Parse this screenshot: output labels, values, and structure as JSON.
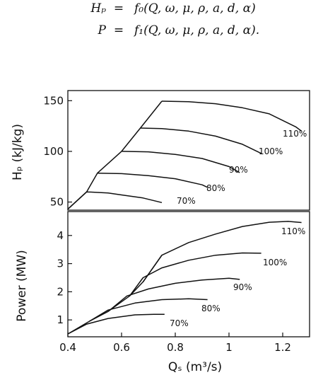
{
  "equations": [
    {
      "lhs": "Hₚ",
      "op": "=",
      "rhs": "f₀(Q, ω, μ, ρ, a, d, α)"
    },
    {
      "lhs": "P",
      "op": "=",
      "rhs": "f₁(Q, ω, μ, ρ, a, d, α)."
    }
  ],
  "chart_data": [
    {
      "type": "line",
      "ylabel": "Hₚ (kJ/kg)",
      "xlim": [
        0.4,
        1.3
      ],
      "ylim": [
        42,
        160
      ],
      "yticks": [
        50,
        100,
        150
      ],
      "series": [
        {
          "name": "70%",
          "x": [
            0.4,
            0.47,
            0.55,
            0.6,
            0.68,
            0.75
          ],
          "y": [
            43,
            60,
            59,
            57,
            54,
            49.5
          ]
        },
        {
          "name": "80%",
          "x": [
            0.51,
            0.6,
            0.7,
            0.8,
            0.9,
            0.92
          ],
          "y": [
            78.5,
            78,
            76,
            73,
            67,
            64.5
          ]
        },
        {
          "name": "90%",
          "x": [
            0.6,
            0.7,
            0.8,
            0.9,
            1.0,
            1.04
          ],
          "y": [
            100,
            99.5,
            97,
            93,
            85,
            79
          ]
        },
        {
          "name": "100%",
          "x": [
            0.67,
            0.75,
            0.85,
            0.95,
            1.05,
            1.12
          ],
          "y": [
            123,
            122.5,
            120,
            115,
            107,
            98
          ]
        },
        {
          "name": "110%",
          "x": [
            0.75,
            0.85,
            0.95,
            1.05,
            1.15,
            1.25,
            1.27
          ],
          "y": [
            149.5,
            149,
            147,
            143,
            137,
            124,
            120
          ]
        },
        {
          "name": "",
          "x": [
            0.4,
            0.47,
            0.51,
            0.6,
            0.67,
            0.75
          ],
          "y": [
            43,
            60,
            78.5,
            100,
            123,
            149.5
          ]
        }
      ]
    },
    {
      "type": "line",
      "xlabel": "Qₛ (m³/s)",
      "ylabel": "Power (MW)",
      "xlim": [
        0.4,
        1.3
      ],
      "ylim": [
        0.4,
        4.85
      ],
      "xticks": [
        0.4,
        0.6,
        0.8,
        1.0,
        1.2
      ],
      "xtick_labels": [
        "0.4",
        "0.6",
        "0.8",
        "1",
        "1.2"
      ],
      "yticks": [
        1,
        2,
        3,
        4
      ],
      "series": [
        {
          "name": "70%",
          "x": [
            0.4,
            0.47,
            0.55,
            0.65,
            0.72,
            0.76
          ],
          "y": [
            0.5,
            0.85,
            1.05,
            1.18,
            1.2,
            1.2
          ]
        },
        {
          "name": "80%",
          "x": [
            0.48,
            0.55,
            0.65,
            0.75,
            0.85,
            0.92
          ],
          "y": [
            0.95,
            1.35,
            1.6,
            1.72,
            1.75,
            1.72
          ]
        },
        {
          "name": "90%",
          "x": [
            0.55,
            0.62,
            0.7,
            0.8,
            0.9,
            1.0,
            1.04
          ],
          "y": [
            1.3,
            1.85,
            2.1,
            2.3,
            2.42,
            2.48,
            2.44
          ]
        },
        {
          "name": "100%",
          "x": [
            0.63,
            0.68,
            0.75,
            0.85,
            0.95,
            1.05,
            1.12
          ],
          "y": [
            1.85,
            2.5,
            2.85,
            3.12,
            3.3,
            3.38,
            3.37
          ]
        },
        {
          "name": "110%",
          "x": [
            0.68,
            0.75,
            0.85,
            0.95,
            1.05,
            1.15,
            1.22,
            1.27
          ],
          "y": [
            2.35,
            3.3,
            3.75,
            4.05,
            4.32,
            4.47,
            4.5,
            4.46
          ]
        },
        {
          "name": "",
          "x": [
            0.4,
            0.48,
            0.55,
            0.63,
            0.68,
            0.75
          ],
          "y": [
            0.5,
            0.95,
            1.3,
            1.85,
            2.35,
            3.3
          ]
        }
      ]
    }
  ]
}
